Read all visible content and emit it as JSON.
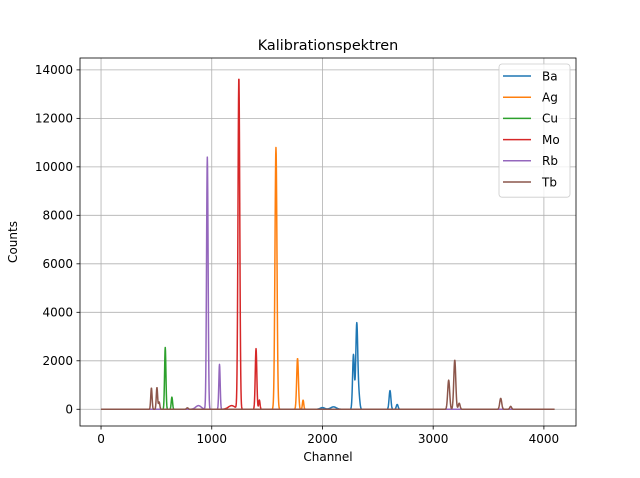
{
  "chart_data": {
    "type": "line",
    "title": "Kalibrationspektren",
    "xlabel": "Channel",
    "ylabel": "Counts",
    "xlim": [
      -190,
      4290
    ],
    "ylim": [
      -690,
      14490
    ],
    "xticks": [
      0,
      1000,
      2000,
      3000,
      4000
    ],
    "yticks": [
      0,
      2000,
      4000,
      6000,
      8000,
      10000,
      12000,
      14000
    ],
    "grid": true,
    "legend_position": "top-right",
    "series": [
      {
        "name": "Ba",
        "color": "#1f77b4",
        "baseline": 0,
        "range": [
          0,
          4096
        ],
        "peaks": [
          [
            2000,
            70,
            20
          ],
          [
            2100,
            100,
            25
          ],
          [
            2280,
            2250,
            8
          ],
          [
            2310,
            3550,
            9
          ],
          [
            2330,
            500,
            8
          ],
          [
            2610,
            770,
            8
          ],
          [
            2675,
            200,
            8
          ]
        ]
      },
      {
        "name": "Ag",
        "color": "#ff7f0e",
        "baseline": 0,
        "range": [
          0,
          4096
        ],
        "peaks": [
          [
            1580,
            10800,
            9
          ],
          [
            1775,
            2100,
            8
          ],
          [
            1825,
            380,
            6
          ]
        ]
      },
      {
        "name": "Cu",
        "color": "#2ca02c",
        "baseline": 0,
        "range": [
          0,
          4096
        ],
        "peaks": [
          [
            580,
            2550,
            6
          ],
          [
            640,
            500,
            6
          ]
        ]
      },
      {
        "name": "Mo",
        "color": "#d62728",
        "baseline": 0,
        "range": [
          0,
          4096
        ],
        "peaks": [
          [
            1245,
            13700,
            8
          ],
          [
            1400,
            2500,
            7
          ],
          [
            1430,
            380,
            6
          ],
          [
            1180,
            150,
            30
          ]
        ]
      },
      {
        "name": "Rb",
        "color": "#9467bd",
        "baseline": 0,
        "range": [
          0,
          4096
        ],
        "peaks": [
          [
            960,
            10400,
            7
          ],
          [
            1070,
            1850,
            6
          ],
          [
            880,
            150,
            25
          ]
        ]
      },
      {
        "name": "Tb",
        "color": "#8c564b",
        "baseline": 0,
        "range": [
          0,
          4096
        ],
        "peaks": [
          [
            455,
            880,
            6
          ],
          [
            505,
            900,
            6
          ],
          [
            525,
            300,
            6
          ],
          [
            780,
            60,
            8
          ],
          [
            3140,
            1200,
            9
          ],
          [
            3195,
            2030,
            9
          ],
          [
            3235,
            250,
            8
          ],
          [
            3610,
            450,
            9
          ],
          [
            3700,
            120,
            8
          ]
        ]
      }
    ]
  }
}
